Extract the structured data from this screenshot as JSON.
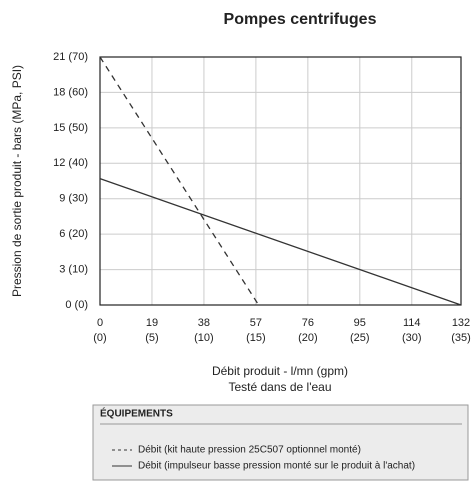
{
  "chart_data": {
    "type": "line",
    "title": "Pompes centrifuges",
    "ylabel": "Pression de sortie produit - bars (MPa, PSI)",
    "xlabel": "Débit produit - l/mn (gpm)",
    "xlabel_note": "Testé dans de l'eau",
    "xlim": [
      0,
      132
    ],
    "ylim": [
      0,
      21
    ],
    "xticks": [
      {
        "value": 0,
        "label": "0",
        "label2": "(0)"
      },
      {
        "value": 19,
        "label": "19",
        "label2": "(5)"
      },
      {
        "value": 38,
        "label": "38",
        "label2": "(10)"
      },
      {
        "value": 57,
        "label": "57",
        "label2": "(15)"
      },
      {
        "value": 76,
        "label": "76",
        "label2": "(20)"
      },
      {
        "value": 95,
        "label": "95",
        "label2": "(25)"
      },
      {
        "value": 114,
        "label": "114",
        "label2": "(30)"
      },
      {
        "value": 132,
        "label": "132",
        "label2": "(35)"
      }
    ],
    "yticks": [
      {
        "value": 0,
        "label": "0 (0)"
      },
      {
        "value": 3,
        "label": "3 (10)"
      },
      {
        "value": 6,
        "label": "6 (20)"
      },
      {
        "value": 9,
        "label": "9 (30)"
      },
      {
        "value": 12,
        "label": "12 (40)"
      },
      {
        "value": 15,
        "label": "15 (50)"
      },
      {
        "value": 18,
        "label": "18 (60)"
      },
      {
        "value": 21,
        "label": "21 (70)"
      }
    ],
    "grid": true,
    "legend_title": "ÉQUIPEMENTS",
    "series": [
      {
        "name": "Débit (kit haute pression 25C507 optionnel monté)",
        "color": "#333333",
        "dash": true,
        "x": [
          0,
          58
        ],
        "values": [
          21,
          0
        ]
      },
      {
        "name": "Débit (impulseur basse pression monté sur le produit à l'achat)",
        "color": "#333333",
        "dash": false,
        "x": [
          0,
          132
        ],
        "values": [
          10.7,
          0
        ]
      }
    ]
  }
}
